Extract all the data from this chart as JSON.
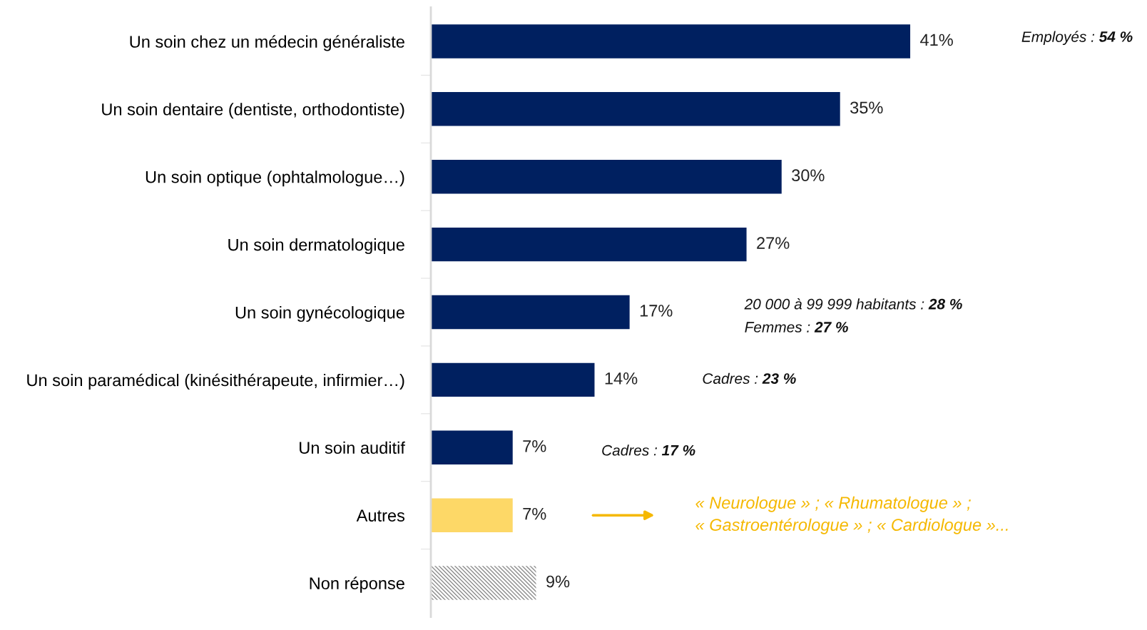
{
  "chart_data": {
    "type": "bar",
    "orientation": "horizontal",
    "categories": [
      "Un soin chez un médecin généraliste",
      "Un soin dentaire (dentiste, orthodontiste)",
      "Un soin optique (ophtalmologue…)",
      "Un soin dermatologique",
      "Un soin gynécologique",
      "Un soin paramédical (kinésithérapeute, infirmier…)",
      "Un soin auditif",
      "Autres",
      "Non réponse"
    ],
    "values": [
      41,
      35,
      30,
      27,
      17,
      14,
      7,
      7,
      9
    ],
    "value_labels": [
      "41%",
      "35%",
      "30%",
      "27%",
      "17%",
      "14%",
      "7%",
      "7%",
      "9%"
    ],
    "colors": [
      "#002060",
      "#002060",
      "#002060",
      "#002060",
      "#002060",
      "#002060",
      "#002060",
      "#fdd867",
      "#8c8c8c"
    ],
    "annotations": [
      "Employés : 54 %",
      "20 000 à 99 999 habitants : 28 %",
      "Femmes : 27 %",
      "Cadres : 23 %",
      "Cadres : 17 %",
      "« Neurologue » ; « Rhumatologue » ;\n« Gastroentérologue » ; « Cardiologue »..."
    ]
  }
}
